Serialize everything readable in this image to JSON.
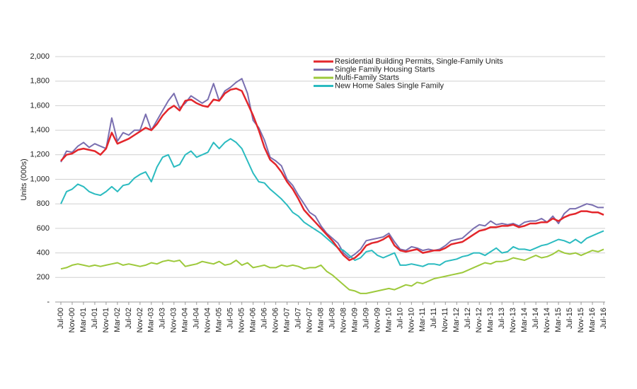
{
  "chart_data": {
    "type": "line",
    "y_label": "Units (000s)",
    "categories": [
      "Jul-00",
      null,
      "Nov-00",
      null,
      "Mar-01",
      null,
      "Jul-01",
      null,
      "Nov-01",
      null,
      "Mar-02",
      null,
      "Jul-02",
      null,
      "Nov-02",
      null,
      "Mar-03",
      null,
      "Jul-03",
      null,
      "Nov-03",
      null,
      "Mar-04",
      null,
      "Jul-04",
      null,
      "Nov-04",
      null,
      "Mar-05",
      null,
      "Jul-05",
      null,
      "Nov-05",
      null,
      "Mar-06",
      null,
      "Jul-06",
      null,
      "Nov-06",
      null,
      "Mar-07",
      null,
      "Jul-07",
      null,
      "Nov-07",
      null,
      "Mar-08",
      null,
      "Jul-08",
      null,
      "Nov-08",
      null,
      "Mar-09",
      null,
      "Jul-09",
      null,
      "Nov-09",
      null,
      "Mar-10",
      null,
      "Jul-10",
      null,
      "Nov-10",
      null,
      "Mar-11",
      null,
      "Jul-11",
      null,
      "Nov-11",
      null,
      "Mar-12",
      null,
      "Jul-12",
      null,
      "Nov-12",
      null,
      "Mar-13",
      null,
      "Jul-13",
      null,
      "Nov-13",
      null,
      "Mar-14",
      null,
      "Jul-14",
      null,
      "Nov-14",
      null,
      "Mar-15",
      null,
      "Jul-15",
      null,
      "Nov-15",
      null,
      "Mar-16",
      null,
      "Jul-16"
    ],
    "series": [
      {
        "name": "Residential Building Permits, Single-Family Units",
        "color": "#e3262b",
        "width": 2.5,
        "values": [
          1150,
          1200,
          1210,
          1240,
          1250,
          1240,
          1230,
          1200,
          1250,
          1380,
          1290,
          1310,
          1330,
          1360,
          1390,
          1420,
          1400,
          1450,
          1520,
          1570,
          1600,
          1560,
          1640,
          1650,
          1620,
          1600,
          1590,
          1650,
          1640,
          1700,
          1730,
          1740,
          1720,
          1620,
          1520,
          1400,
          1260,
          1160,
          1120,
          1060,
          980,
          920,
          840,
          750,
          700,
          650,
          600,
          550,
          500,
          440,
          380,
          340,
          360,
          400,
          460,
          480,
          490,
          510,
          540,
          460,
          420,
          410,
          420,
          430,
          400,
          410,
          420,
          420,
          440,
          470,
          480,
          490,
          520,
          550,
          580,
          590,
          610,
          610,
          620,
          620,
          630,
          610,
          620,
          640,
          640,
          650,
          650,
          680,
          660,
          690,
          710,
          720,
          740,
          740,
          730,
          730,
          710
        ]
      },
      {
        "name": "Single Family Housing Starts",
        "color": "#7a6fb0",
        "width": 2,
        "values": [
          1140,
          1230,
          1220,
          1270,
          1300,
          1260,
          1290,
          1270,
          1250,
          1500,
          1310,
          1380,
          1360,
          1400,
          1400,
          1530,
          1400,
          1480,
          1560,
          1640,
          1700,
          1580,
          1620,
          1680,
          1650,
          1620,
          1650,
          1780,
          1640,
          1720,
          1750,
          1790,
          1820,
          1700,
          1480,
          1420,
          1320,
          1180,
          1150,
          1110,
          1000,
          950,
          870,
          800,
          730,
          700,
          620,
          560,
          520,
          480,
          400,
          360,
          390,
          430,
          500,
          510,
          520,
          530,
          560,
          490,
          430,
          420,
          450,
          440,
          420,
          430,
          420,
          430,
          460,
          500,
          510,
          520,
          560,
          600,
          630,
          620,
          660,
          630,
          640,
          630,
          640,
          620,
          650,
          660,
          660,
          680,
          650,
          700,
          640,
          720,
          760,
          760,
          780,
          800,
          790,
          770,
          770
        ]
      },
      {
        "name": "Multi-Family Starts",
        "color": "#9dc93b",
        "width": 2,
        "values": [
          270,
          280,
          300,
          310,
          300,
          290,
          300,
          290,
          300,
          310,
          320,
          300,
          310,
          300,
          290,
          300,
          320,
          310,
          330,
          340,
          330,
          340,
          290,
          300,
          310,
          330,
          320,
          310,
          330,
          300,
          310,
          340,
          300,
          320,
          280,
          290,
          300,
          280,
          280,
          300,
          290,
          300,
          290,
          270,
          280,
          280,
          300,
          250,
          220,
          180,
          140,
          100,
          90,
          70,
          70,
          80,
          90,
          100,
          110,
          100,
          120,
          140,
          130,
          160,
          150,
          170,
          190,
          200,
          210,
          220,
          230,
          240,
          260,
          280,
          300,
          320,
          310,
          330,
          330,
          340,
          360,
          350,
          340,
          360,
          380,
          360,
          370,
          390,
          420,
          400,
          390,
          400,
          380,
          400,
          420,
          410,
          430
        ]
      },
      {
        "name": "New Home Sales Single Family",
        "color": "#2bbbc0",
        "width": 2,
        "values": [
          800,
          900,
          920,
          960,
          940,
          900,
          880,
          870,
          900,
          940,
          900,
          950,
          960,
          1010,
          1040,
          1060,
          980,
          1100,
          1180,
          1200,
          1100,
          1120,
          1200,
          1230,
          1180,
          1200,
          1220,
          1300,
          1250,
          1300,
          1330,
          1300,
          1250,
          1150,
          1050,
          980,
          970,
          920,
          880,
          840,
          790,
          730,
          700,
          650,
          620,
          590,
          560,
          520,
          480,
          440,
          420,
          380,
          340,
          360,
          410,
          420,
          380,
          360,
          380,
          400,
          300,
          300,
          310,
          300,
          290,
          310,
          310,
          300,
          330,
          340,
          350,
          370,
          380,
          400,
          400,
          380,
          410,
          440,
          400,
          410,
          450,
          430,
          430,
          420,
          440,
          460,
          470,
          490,
          510,
          500,
          480,
          510,
          480,
          520,
          540,
          560,
          580
        ]
      }
    ],
    "ylim": [
      0,
      2000
    ],
    "yticks": [
      {
        "value": 0,
        "label": "-"
      },
      200,
      400,
      600,
      800,
      {
        "value": 1000,
        "label": "1,000"
      },
      {
        "value": 1200,
        "label": "1,200"
      },
      {
        "value": 1400,
        "label": "1,400"
      },
      {
        "value": 1600,
        "label": "1,600"
      },
      {
        "value": 1800,
        "label": "1,800"
      },
      {
        "value": 2000,
        "label": "2,000"
      }
    ],
    "grid": true,
    "legend": "top"
  }
}
